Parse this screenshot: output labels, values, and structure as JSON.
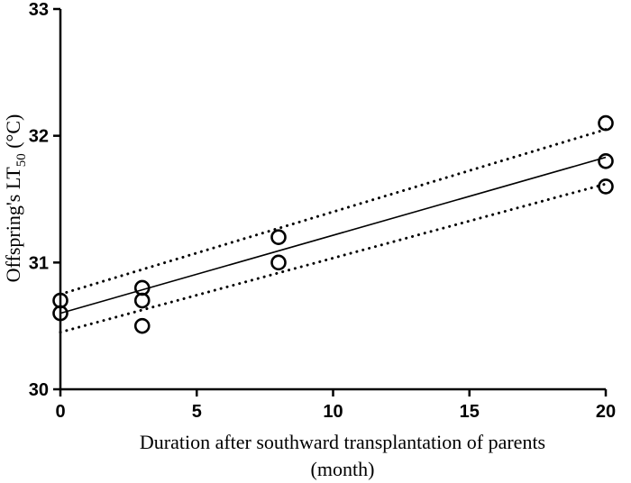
{
  "chart_data": {
    "type": "scatter",
    "title": "",
    "xlabel_line1": "Duration after southward transplantation of parents",
    "xlabel_line2": "(month)",
    "ylabel_main": "Offspring's LT",
    "ylabel_sub": "50",
    "ylabel_unit": " (°C)",
    "xlim": [
      0,
      20
    ],
    "ylim": [
      30,
      33
    ],
    "x_ticks": [
      "0",
      "5",
      "10",
      "15",
      "20"
    ],
    "y_ticks": [
      "30",
      "31",
      "32",
      "33"
    ],
    "grid": false,
    "legend": "none",
    "series": [
      {
        "points": [
          {
            "x": 0,
            "y": 30.6
          },
          {
            "x": 0,
            "y": 30.7
          },
          {
            "x": 3,
            "y": 30.5
          },
          {
            "x": 3,
            "y": 30.7
          },
          {
            "x": 3,
            "y": 30.8
          },
          {
            "x": 8,
            "y": 31.0
          },
          {
            "x": 8,
            "y": 31.2
          },
          {
            "x": 20,
            "y": 31.6
          },
          {
            "x": 20,
            "y": 31.8
          },
          {
            "x": 20,
            "y": 32.1
          }
        ]
      }
    ],
    "fit_line": {
      "x": [
        0,
        20
      ],
      "y": [
        30.6,
        31.83
      ]
    },
    "ci_upper": {
      "x": [
        0,
        20
      ],
      "y": [
        30.75,
        32.05
      ]
    },
    "ci_lower": {
      "x": [
        0,
        20
      ],
      "y": [
        30.45,
        31.62
      ]
    }
  }
}
